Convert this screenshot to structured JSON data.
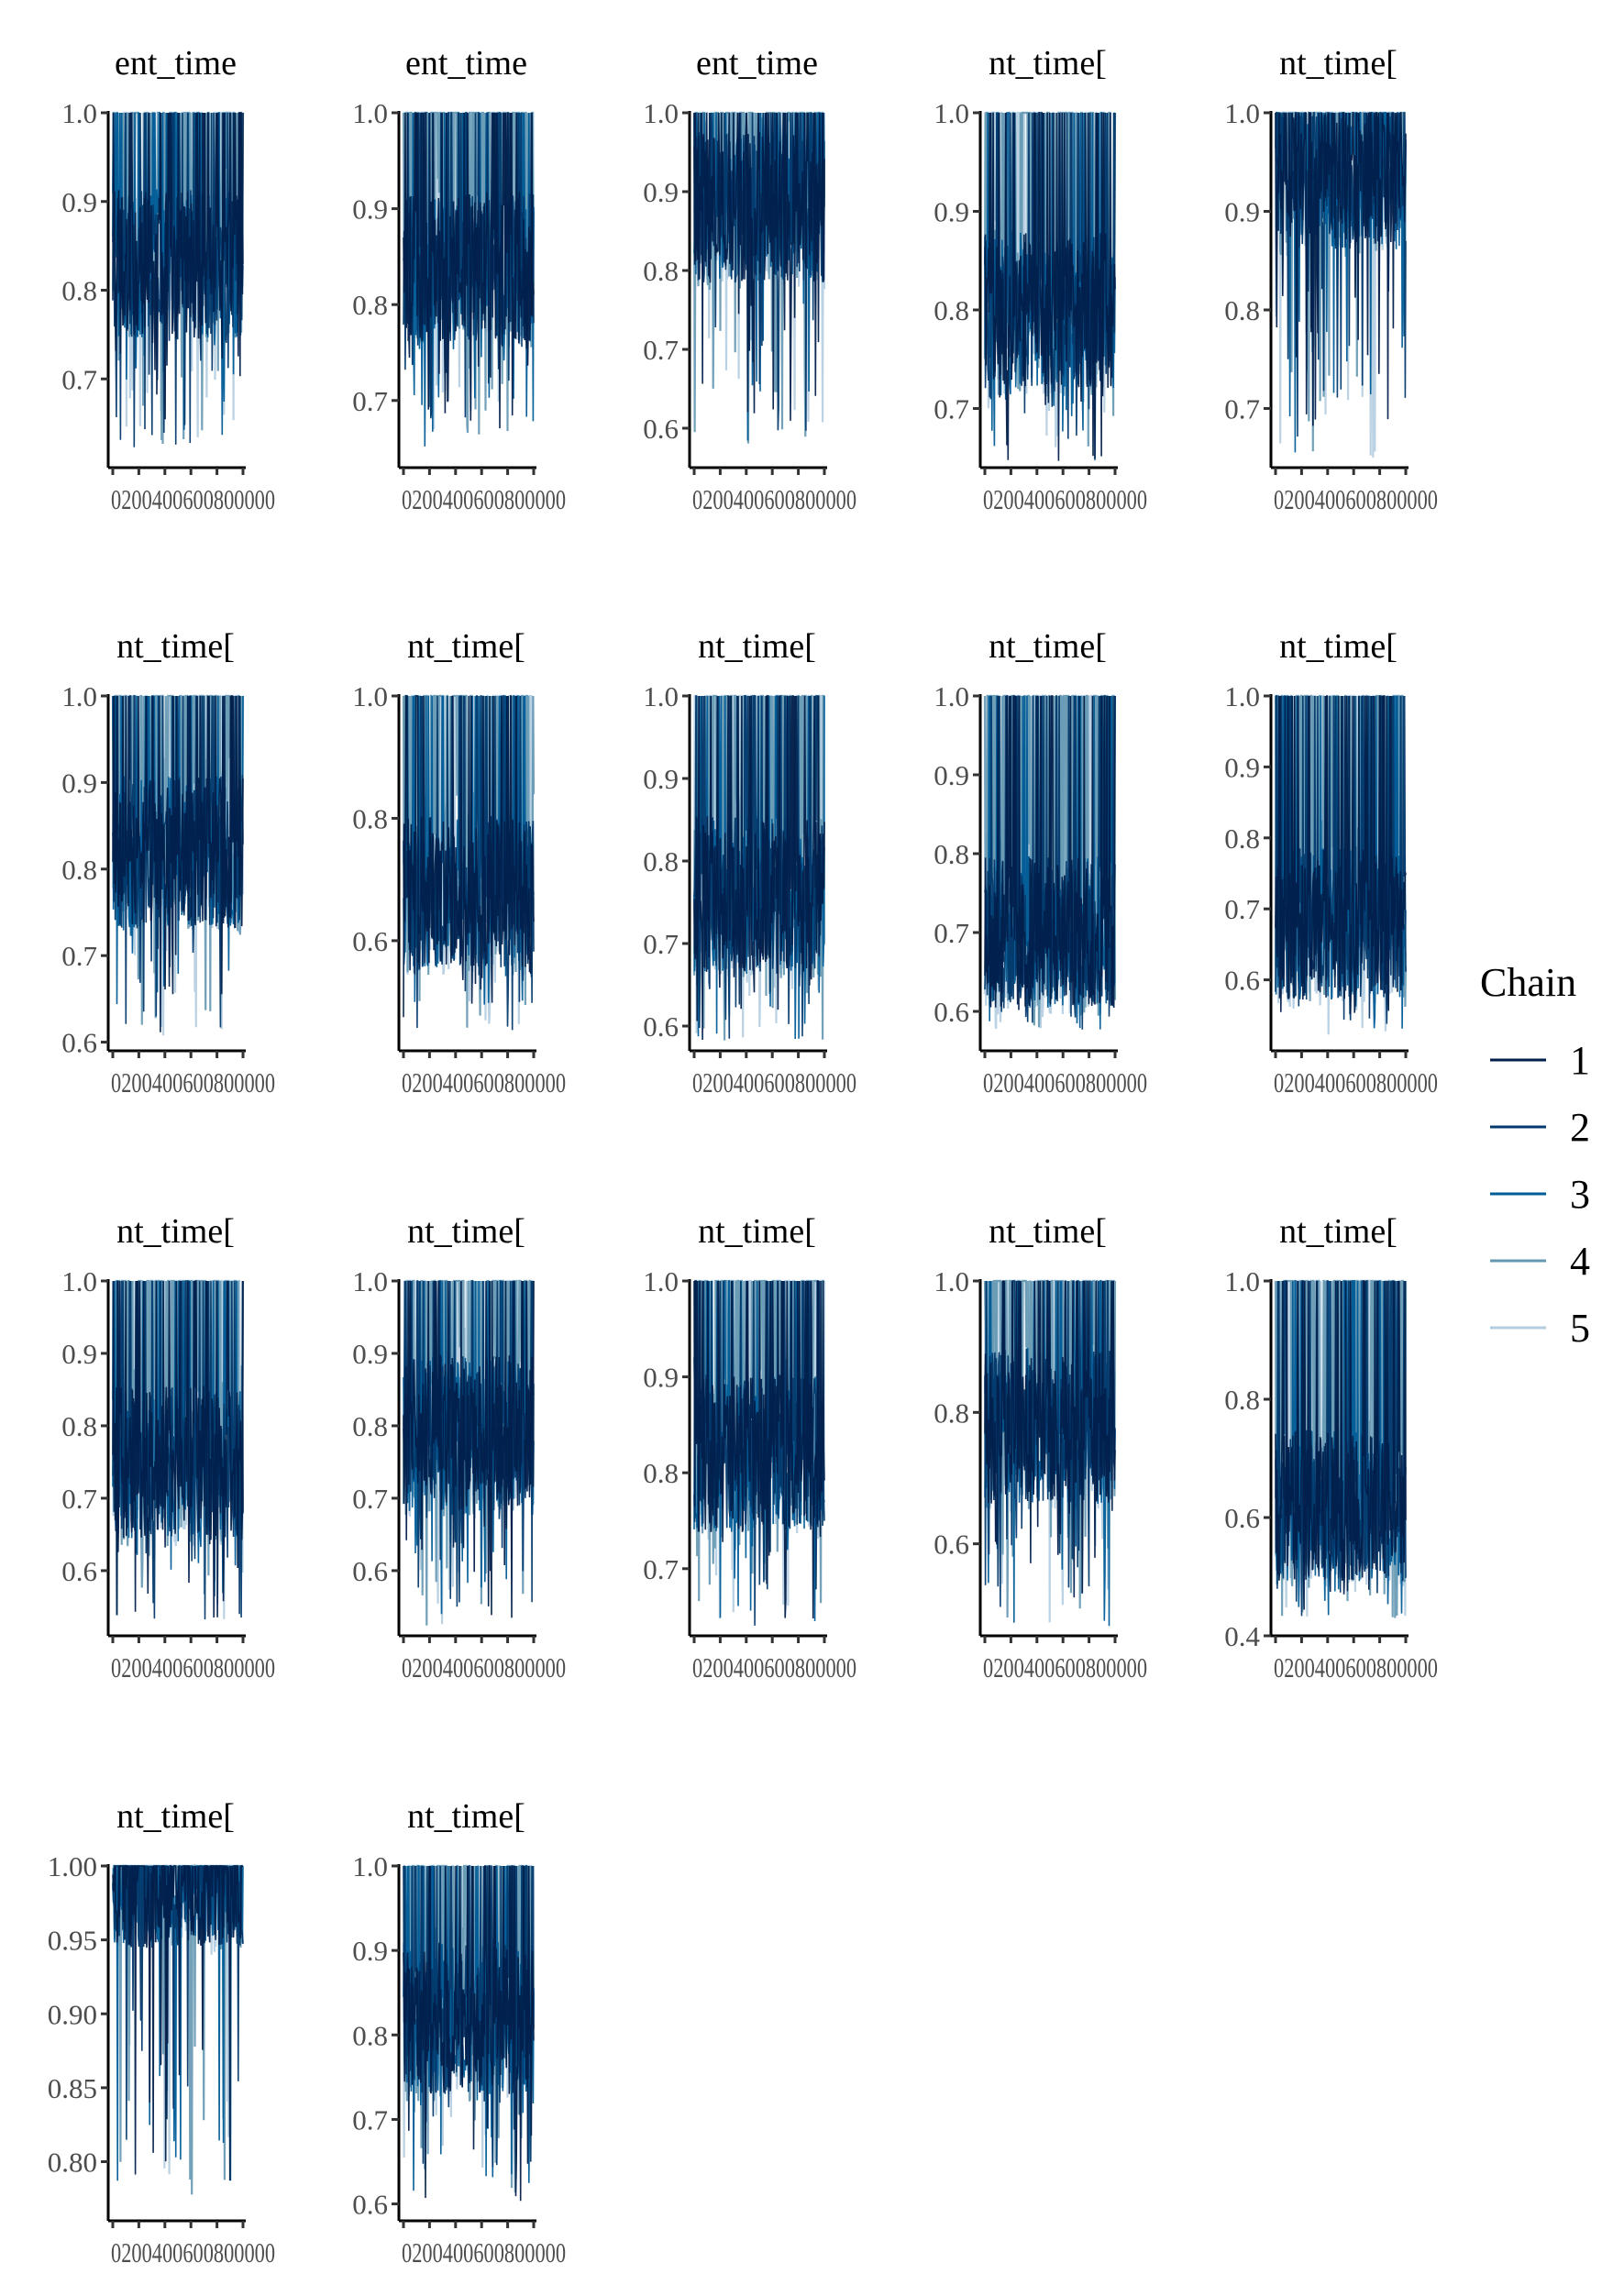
{
  "chart_data": {
    "type": "line",
    "grid": false,
    "legend_position": "right",
    "legend": {
      "title": "Chain",
      "entries": [
        {
          "label": "1",
          "color": "#011f4b"
        },
        {
          "label": "2",
          "color": "#03396c"
        },
        {
          "label": "3",
          "color": "#005b96"
        },
        {
          "label": "4",
          "color": "#6497b1"
        },
        {
          "label": "5",
          "color": "#b3cde0"
        }
      ]
    },
    "x_ticks": [
      0,
      200,
      400,
      600,
      800,
      1000
    ],
    "x_tick_text": "0200400600800000",
    "panels": [
      {
        "title": "ent_time",
        "ylim": [
          0.6,
          1.0
        ],
        "yticks": [
          "0.7",
          "0.8",
          "0.9",
          "1.0"
        ],
        "mean": 0.83,
        "low": 0.62
      },
      {
        "title": "ent_time",
        "ylim": [
          0.63,
          1.0
        ],
        "yticks": [
          "0.7",
          "0.8",
          "0.9",
          "1.0"
        ],
        "mean": 0.84,
        "low": 0.65
      },
      {
        "title": "ent_time",
        "ylim": [
          0.55,
          1.0
        ],
        "yticks": [
          "0.6",
          "0.7",
          "0.8",
          "0.9",
          "1.0"
        ],
        "mean": 0.88,
        "low": 0.575
      },
      {
        "title": "nt_time[",
        "ylim": [
          0.64,
          1.0
        ],
        "yticks": [
          "0.7",
          "0.8",
          "0.9",
          "1.0"
        ],
        "mean": 0.8,
        "low": 0.645
      },
      {
        "title": "nt_time[",
        "ylim": [
          0.64,
          1.0
        ],
        "yticks": [
          "0.7",
          "0.8",
          "0.9",
          "1.0"
        ],
        "mean": 0.94,
        "low": 0.65
      },
      {
        "title": "nt_time[",
        "ylim": [
          0.59,
          1.0
        ],
        "yticks": [
          "0.6",
          "0.7",
          "0.8",
          "0.9",
          "1.0"
        ],
        "mean": 0.82,
        "low": 0.605
      },
      {
        "title": "nt_time[",
        "ylim": [
          0.42,
          1.0
        ],
        "yticks": [
          "0.6",
          "0.8",
          "1.0"
        ],
        "mean": 0.68,
        "low": 0.45
      },
      {
        "title": "nt_time[",
        "ylim": [
          0.57,
          1.0
        ],
        "yticks": [
          "0.6",
          "0.7",
          "0.8",
          "0.9",
          "1.0"
        ],
        "mean": 0.76,
        "low": 0.58
      },
      {
        "title": "nt_time[",
        "ylim": [
          0.55,
          1.0
        ],
        "yticks": [
          "0.6",
          "0.7",
          "0.8",
          "0.9",
          "1.0"
        ],
        "mean": 0.7,
        "low": 0.57
      },
      {
        "title": "nt_time[",
        "ylim": [
          0.5,
          1.0
        ],
        "yticks": [
          "0.6",
          "0.7",
          "0.8",
          "0.9",
          "1.0"
        ],
        "mean": 0.68,
        "low": 0.52
      },
      {
        "title": "nt_time[",
        "ylim": [
          0.51,
          1.0
        ],
        "yticks": [
          "0.6",
          "0.7",
          "0.8",
          "0.9",
          "1.0"
        ],
        "mean": 0.75,
        "low": 0.53
      },
      {
        "title": "nt_time[",
        "ylim": [
          0.51,
          1.0
        ],
        "yticks": [
          "0.6",
          "0.7",
          "0.8",
          "0.9",
          "1.0"
        ],
        "mean": 0.79,
        "low": 0.52
      },
      {
        "title": "nt_time[",
        "ylim": [
          0.63,
          1.0
        ],
        "yticks": [
          "0.7",
          "0.8",
          "0.9",
          "1.0"
        ],
        "mean": 0.82,
        "low": 0.635
      },
      {
        "title": "nt_time[",
        "ylim": [
          0.46,
          1.0
        ],
        "yticks": [
          "0.6",
          "0.8",
          "1.0"
        ],
        "mean": 0.78,
        "low": 0.47
      },
      {
        "title": "nt_time[",
        "ylim": [
          0.4,
          1.0
        ],
        "yticks": [
          "0.4",
          "0.6",
          "0.8",
          "1.0"
        ],
        "mean": 0.62,
        "low": 0.43
      },
      {
        "title": "nt_time[",
        "ylim": [
          0.76,
          1.0
        ],
        "yticks": [
          "0.80",
          "0.85",
          "0.90",
          "0.95",
          "1.00"
        ],
        "mean": 0.995,
        "low": 0.775
      },
      {
        "title": "nt_time[",
        "ylim": [
          0.58,
          1.0
        ],
        "yticks": [
          "0.6",
          "0.7",
          "0.8",
          "0.9",
          "1.0"
        ],
        "mean": 0.82,
        "low": 0.6
      }
    ]
  }
}
